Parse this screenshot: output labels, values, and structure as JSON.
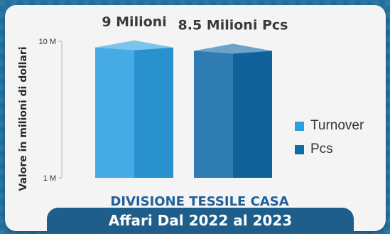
{
  "chart_data": {
    "type": "bar",
    "categories": [
      "Turnover",
      "Pcs"
    ],
    "values": [
      9000000,
      8500000
    ],
    "data_labels": [
      "9 Milioni",
      "8.5 Milioni Pcs"
    ],
    "ylabel": "Valore in milioni di dollari",
    "yscale": "log",
    "ylim": [
      1000000,
      10000000
    ],
    "yticks": [
      "1 M",
      "10 M"
    ],
    "legend": [
      "Turnover",
      "Pcs"
    ],
    "legend_position": "right",
    "colors": [
      "#2d9fe0",
      "#136aa8"
    ],
    "grid": false
  },
  "subtitle": "DIVISIONE TESSILE CASA",
  "banner": "Affari Dal 2022 al 2023"
}
